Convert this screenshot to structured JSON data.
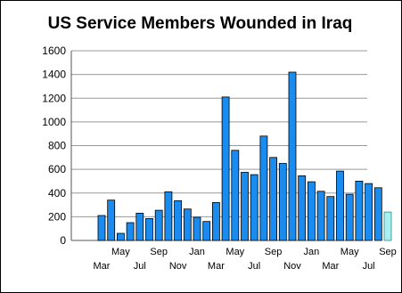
{
  "chart_data": {
    "type": "bar",
    "title": "US Service Members Wounded in Iraq",
    "xlabel": "",
    "ylabel": "",
    "ylim": [
      0,
      1600
    ],
    "yticks": [
      0,
      200,
      400,
      600,
      800,
      1000,
      1200,
      1400,
      1600
    ],
    "grid": true,
    "colors": {
      "bar": "#1a8cf0",
      "highlight": "#a8f0f0",
      "grid": "#999999"
    },
    "x_tick_labels": [
      {
        "index": 0,
        "label": "Mar"
      },
      {
        "index": 2,
        "label": "May"
      },
      {
        "index": 4,
        "label": "Jul"
      },
      {
        "index": 6,
        "label": "Sep"
      },
      {
        "index": 8,
        "label": "Nov"
      },
      {
        "index": 10,
        "label": "Jan"
      },
      {
        "index": 12,
        "label": "Mar"
      },
      {
        "index": 14,
        "label": "May"
      },
      {
        "index": 16,
        "label": "Jul"
      },
      {
        "index": 18,
        "label": "Sep"
      },
      {
        "index": 20,
        "label": "Nov"
      },
      {
        "index": 22,
        "label": "Jan"
      },
      {
        "index": 24,
        "label": "Mar"
      },
      {
        "index": 26,
        "label": "May"
      },
      {
        "index": 28,
        "label": "Jul"
      },
      {
        "index": 30,
        "label": "Sep"
      }
    ],
    "values": [
      210,
      340,
      60,
      150,
      230,
      185,
      255,
      410,
      335,
      265,
      195,
      160,
      320,
      1210,
      760,
      575,
      555,
      880,
      700,
      650,
      1420,
      545,
      495,
      415,
      370,
      585,
      390,
      500,
      480,
      445,
      240
    ],
    "highlight_last": true
  }
}
